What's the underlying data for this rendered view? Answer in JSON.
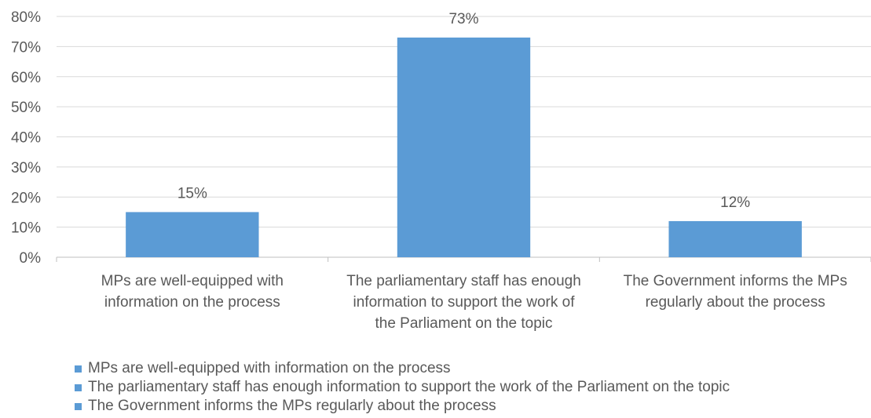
{
  "chart_data": {
    "type": "bar",
    "categories": [
      [
        "MPs are well-equipped with",
        "information on the process"
      ],
      [
        "The parliamentary staff has enough",
        "information to support the work of",
        "the Parliament on the topic"
      ],
      [
        "The Government informs the MPs",
        "regularly about the process"
      ]
    ],
    "values": [
      15,
      73,
      12
    ],
    "value_labels": [
      "15%",
      "73%",
      "12%"
    ],
    "yticks": [
      "0%",
      "10%",
      "20%",
      "30%",
      "40%",
      "50%",
      "60%",
      "70%",
      "80%"
    ],
    "ylim": [
      0,
      80
    ],
    "grid": true,
    "bar_color": "#5B9BD5",
    "legend_position": "bottom",
    "legend": [
      "MPs are well-equipped with information on the process",
      "The parliamentary staff has enough information to support the work of the Parliament on the topic",
      "The Government informs the MPs regularly about the process"
    ]
  }
}
